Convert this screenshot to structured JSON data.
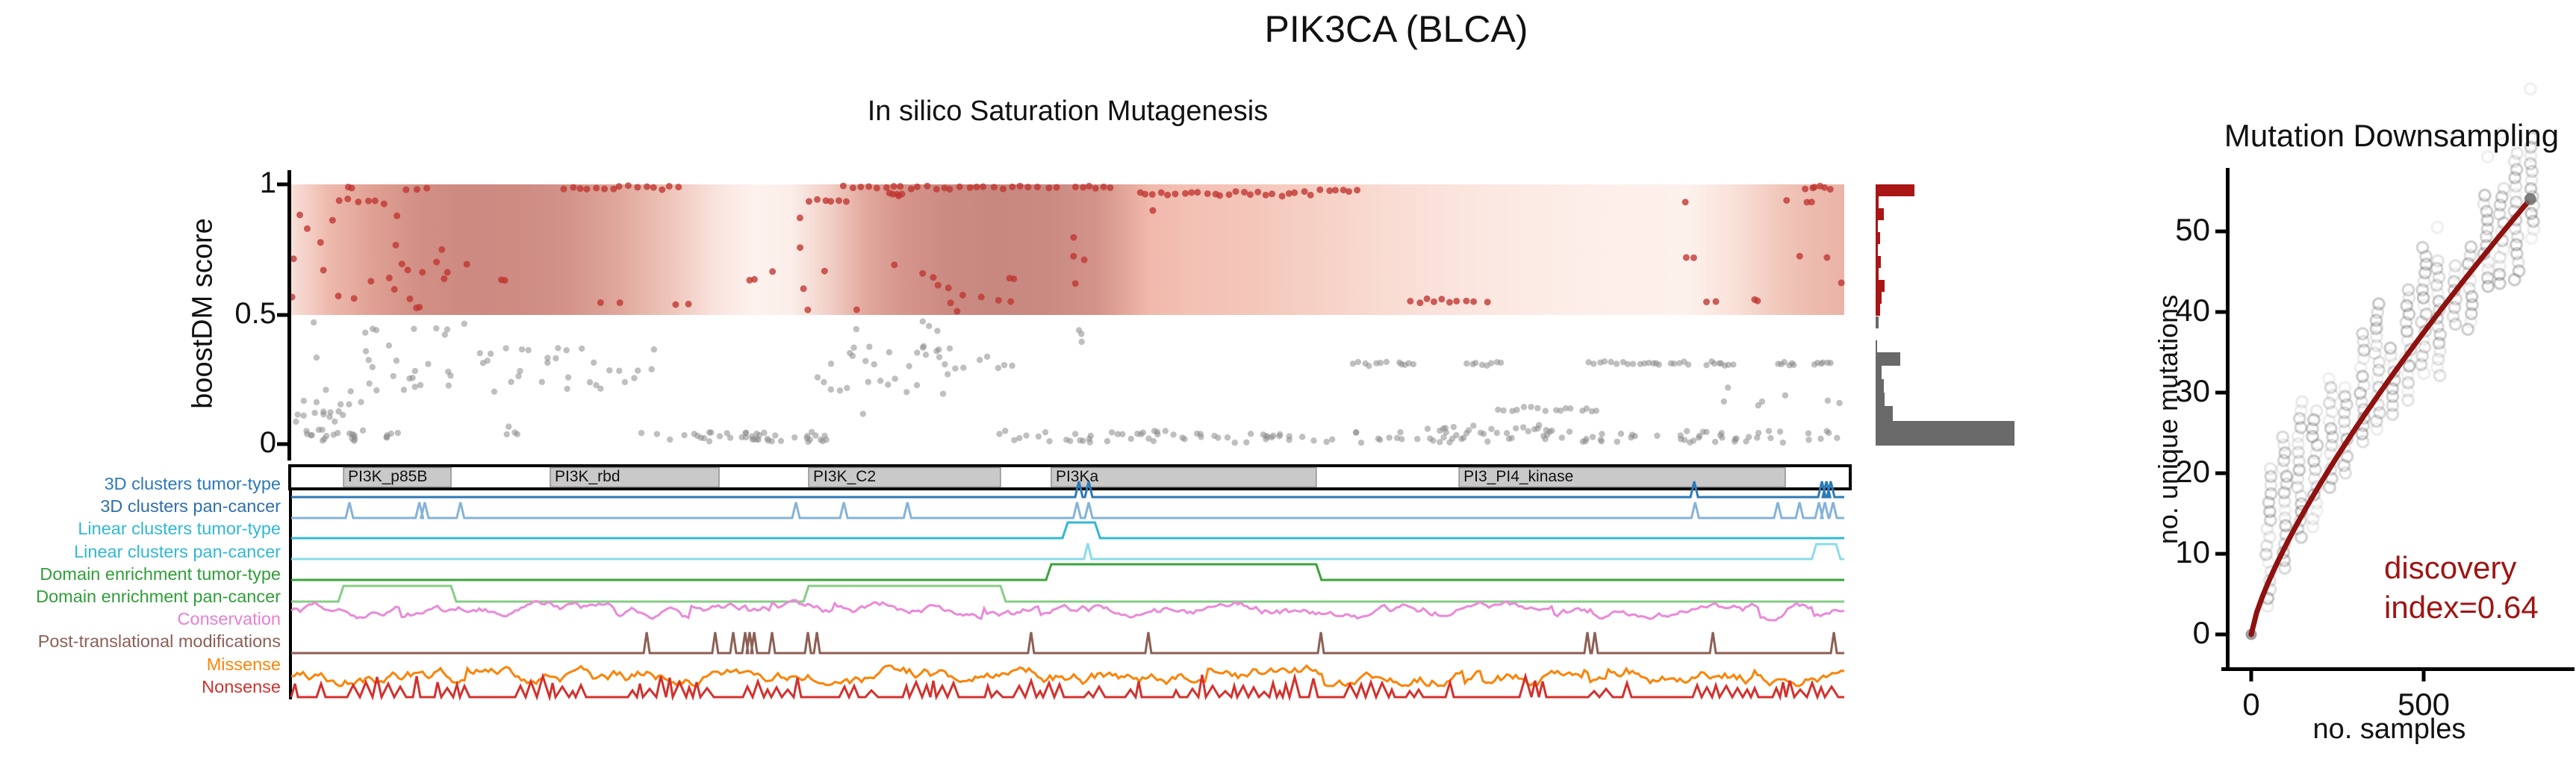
{
  "figure": {
    "title": "PIK3CA (BLCA)"
  },
  "chart_data": [
    {
      "id": "saturation_mutagenesis",
      "type": "scatter",
      "title": "In silico Saturation Mutagenesis",
      "ylabel": "boostDM score",
      "yticks": [
        "1",
        "0.5",
        "0"
      ],
      "ylim": [
        0,
        1
      ],
      "driver_threshold": 0.5,
      "driver_color": "#bf3430",
      "passenger_color": "#8a8a8a",
      "gradient_stops": [
        [
          0.0,
          "#f8e0da"
        ],
        [
          0.024,
          "#eeb9ad"
        ],
        [
          0.053,
          "#dfa093"
        ],
        [
          0.082,
          "#d28f85"
        ],
        [
          0.111,
          "#cd8a81"
        ],
        [
          0.144,
          "#cd8b82"
        ],
        [
          0.178,
          "#d3938a"
        ],
        [
          0.212,
          "#e0a89c"
        ],
        [
          0.245,
          "#efc6bb"
        ],
        [
          0.274,
          "#f9e4de"
        ],
        [
          0.298,
          "#fdf2ee"
        ],
        [
          0.322,
          "#fbeee9"
        ],
        [
          0.346,
          "#f2d0c7"
        ],
        [
          0.37,
          "#e2a89d"
        ],
        [
          0.394,
          "#d5958c"
        ],
        [
          0.423,
          "#cb8b83"
        ],
        [
          0.452,
          "#c78880"
        ],
        [
          0.486,
          "#c98a82"
        ],
        [
          0.519,
          "#d3938a"
        ],
        [
          0.538,
          "#e4a89b"
        ],
        [
          0.553,
          "#f0b9ac"
        ],
        [
          0.577,
          "#f3c0b4"
        ],
        [
          0.615,
          "#f4c5b9"
        ],
        [
          0.654,
          "#f6cfc3"
        ],
        [
          0.707,
          "#f9dcd3"
        ],
        [
          0.76,
          "#fbe6df"
        ],
        [
          0.813,
          "#fcece6"
        ],
        [
          0.865,
          "#fdf0eb"
        ],
        [
          0.899,
          "#fdf1ec"
        ],
        [
          0.928,
          "#f9e2da"
        ],
        [
          0.957,
          "#f1c8bc"
        ],
        [
          0.981,
          "#ecbaad"
        ],
        [
          1.0,
          "#eab4a7"
        ]
      ],
      "red_rows": [
        {
          "x0": 0.0355,
          "x1": 0.039,
          "y": 0.985,
          "n": 2
        },
        {
          "x0": 0.072,
          "x1": 0.086,
          "y": 0.985,
          "n": 3
        },
        {
          "x0": 0.175,
          "x1": 0.248,
          "y": 0.99,
          "n": 15
        },
        {
          "x0": 0.355,
          "x1": 0.435,
          "y": 0.99,
          "n": 16
        },
        {
          "x0": 0.44,
          "x1": 0.492,
          "y": 0.99,
          "n": 10
        },
        {
          "x0": 0.505,
          "x1": 0.527,
          "y": 0.99,
          "n": 6
        },
        {
          "x0": 0.545,
          "x1": 0.656,
          "y": 0.965,
          "n": 24
        },
        {
          "x0": 0.663,
          "x1": 0.685,
          "y": 0.98,
          "n": 6
        },
        {
          "x0": 0.9755,
          "x1": 0.99,
          "y": 0.985,
          "n": 6
        },
        {
          "x0": 0.031,
          "x1": 0.059,
          "y": 0.935,
          "n": 6
        },
        {
          "x0": 0.333,
          "x1": 0.356,
          "y": 0.935,
          "n": 6
        },
        {
          "x0": 0.385,
          "x1": 0.393,
          "y": 0.963,
          "n": 5
        },
        {
          "x0": 0.72,
          "x1": 0.756,
          "y": 0.552,
          "n": 8
        }
      ],
      "red_singles": [
        [
          0.0,
          0.565
        ],
        [
          0.001,
          0.71
        ],
        [
          0.011,
          0.83
        ],
        [
          0.019,
          0.78
        ],
        [
          0.027,
          0.865
        ],
        [
          0.005,
          0.88
        ],
        [
          0.031,
          0.57
        ],
        [
          0.041,
          0.565
        ],
        [
          0.052,
          0.625
        ],
        [
          0.063,
          0.64
        ],
        [
          0.066,
          0.6
        ],
        [
          0.021,
          0.67
        ],
        [
          0.068,
          0.77
        ],
        [
          0.072,
          0.695
        ],
        [
          0.076,
          0.56
        ],
        [
          0.08,
          0.525
        ],
        [
          0.083,
          0.53
        ],
        [
          0.068,
          0.875
        ],
        [
          0.085,
          0.66
        ],
        [
          0.094,
          0.7
        ],
        [
          0.097,
          0.75
        ],
        [
          0.101,
          0.66
        ],
        [
          0.099,
          0.635
        ],
        [
          0.0745,
          0.67
        ],
        [
          0.135,
          0.635
        ],
        [
          0.137,
          0.63
        ],
        [
          0.199,
          0.542
        ],
        [
          0.2115,
          0.542
        ],
        [
          0.248,
          0.54
        ],
        [
          0.256,
          0.54
        ],
        [
          0.295,
          0.635
        ],
        [
          0.298,
          0.63
        ],
        [
          0.332,
          0.52
        ],
        [
          0.364,
          0.52
        ],
        [
          0.31,
          0.665
        ],
        [
          0.113,
          0.69
        ],
        [
          0.327,
          0.87
        ],
        [
          0.327,
          0.76
        ],
        [
          0.343,
          0.67
        ],
        [
          0.389,
          0.69
        ],
        [
          0.407,
          0.66
        ],
        [
          0.413,
          0.64
        ],
        [
          0.416,
          0.61
        ],
        [
          0.423,
          0.6
        ],
        [
          0.444,
          0.57
        ],
        [
          0.462,
          0.64
        ],
        [
          0.465,
          0.638
        ],
        [
          0.425,
          0.545
        ],
        [
          0.4285,
          0.515
        ],
        [
          0.456,
          0.552
        ],
        [
          0.463,
          0.55
        ],
        [
          0.33,
          0.6
        ],
        [
          0.432,
          0.57
        ],
        [
          0.504,
          0.8
        ],
        [
          0.504,
          0.72
        ],
        [
          0.5055,
          0.62
        ],
        [
          0.51,
          0.71
        ],
        [
          0.555,
          0.9
        ],
        [
          0.762,
          0.55
        ],
        [
          0.77,
          0.55
        ],
        [
          0.897,
          0.935
        ],
        [
          0.898,
          0.715
        ],
        [
          0.903,
          0.72
        ],
        [
          0.963,
          0.935
        ],
        [
          0.9755,
          0.93
        ],
        [
          0.979,
          0.93
        ],
        [
          0.971,
          0.72
        ],
        [
          0.9895,
          0.72
        ],
        [
          0.998,
          0.62
        ],
        [
          0.912,
          0.55
        ],
        [
          0.917,
          0.55
        ],
        [
          0.942,
          0.555
        ],
        [
          0.9445,
          0.55
        ]
      ],
      "gray_rows": [
        {
          "x0": 0.684,
          "x1": 0.705,
          "y": 0.31,
          "n": 7
        },
        {
          "x0": 0.713,
          "x1": 0.722,
          "y": 0.31,
          "n": 5
        },
        {
          "x0": 0.757,
          "x1": 0.779,
          "y": 0.31,
          "n": 8
        },
        {
          "x0": 0.835,
          "x1": 0.868,
          "y": 0.31,
          "n": 10
        },
        {
          "x0": 0.872,
          "x1": 0.881,
          "y": 0.308,
          "n": 5
        },
        {
          "x0": 0.888,
          "x1": 0.899,
          "y": 0.308,
          "n": 5
        },
        {
          "x0": 0.912,
          "x1": 0.928,
          "y": 0.31,
          "n": 8
        },
        {
          "x0": 0.958,
          "x1": 0.968,
          "y": 0.31,
          "n": 6
        },
        {
          "x0": 0.981,
          "x1": 0.991,
          "y": 0.31,
          "n": 6
        },
        {
          "x0": 0.777,
          "x1": 0.807,
          "y": 0.135,
          "n": 8
        },
        {
          "x0": 0.814,
          "x1": 0.823,
          "y": 0.135,
          "n": 4
        },
        {
          "x0": 0.831,
          "x1": 0.84,
          "y": 0.135,
          "n": 4
        }
      ],
      "gray_clusters": [
        {
          "x0": 0.014,
          "x1": 0.235,
          "y0": 0.2,
          "y1": 0.385,
          "n": 52
        },
        {
          "x0": 0.002,
          "x1": 0.047,
          "y0": 0.08,
          "y1": 0.175,
          "n": 16
        },
        {
          "x0": 0.335,
          "x1": 0.465,
          "y0": 0.19,
          "y1": 0.38,
          "n": 38
        },
        {
          "x0": 0.01,
          "x1": 0.07,
          "y0": 0.005,
          "y1": 0.055,
          "n": 24
        },
        {
          "x0": 0.218,
          "x1": 0.345,
          "y0": 0.005,
          "y1": 0.05,
          "n": 42
        },
        {
          "x0": 0.455,
          "x1": 0.72,
          "y0": 0.005,
          "y1": 0.05,
          "n": 65
        },
        {
          "x0": 0.72,
          "x1": 0.82,
          "y0": 0.005,
          "y1": 0.07,
          "n": 40
        },
        {
          "x0": 0.82,
          "x1": 1.0,
          "y0": 0.005,
          "y1": 0.055,
          "n": 45
        },
        {
          "x0": 0.138,
          "x1": 0.152,
          "y0": 0.03,
          "y1": 0.08,
          "n": 4
        }
      ],
      "gray_singles": [
        [
          0.0145,
          0.47
        ],
        [
          0.053,
          0.445
        ],
        [
          0.055,
          0.44
        ],
        [
          0.0795,
          0.44
        ],
        [
          0.094,
          0.445
        ],
        [
          0.101,
          0.44
        ],
        [
          0.111,
          0.46
        ],
        [
          0.0475,
          0.425
        ],
        [
          0.0995,
          0.425
        ],
        [
          0.3645,
          0.445
        ],
        [
          0.407,
          0.47
        ],
        [
          0.411,
          0.455
        ],
        [
          0.416,
          0.44
        ],
        [
          0.507,
          0.44
        ],
        [
          0.509,
          0.425
        ],
        [
          0.509,
          0.39
        ],
        [
          0.368,
          0.12
        ],
        [
          0.923,
          0.16
        ],
        [
          0.9245,
          0.22
        ],
        [
          0.945,
          0.145
        ],
        [
          0.947,
          0.165
        ],
        [
          0.962,
          0.19
        ],
        [
          0.99,
          0.17
        ],
        [
          0.997,
          0.155
        ]
      ],
      "domain_segments": [
        {
          "label": "PI3K_p85B",
          "x0": 0.0337,
          "x1": 0.1029
        },
        {
          "label": "PI3K_rbd",
          "x0": 0.1668,
          "x1": 0.2755
        },
        {
          "label": "PI3K_C2",
          "x0": 0.3332,
          "x1": 0.4567
        },
        {
          "label": "PI3Ka",
          "x0": 0.4894,
          "x1": 0.66
        },
        {
          "label": "PI3_PI4_kinase",
          "x0": 0.752,
          "x1": 0.962
        }
      ],
      "tracks": [
        {
          "label": "3D clusters tumor-type",
          "label_color": "#2b7ab8",
          "line_color": "#2b7ab8",
          "kind": "spikes",
          "spikes": [
            0.5072,
            0.5135,
            0.9034,
            0.9856,
            0.9885,
            0.9913
          ]
        },
        {
          "label": "3D clusters pan-cancer",
          "label_color": "#2e6fa8",
          "line_color": "#85b3d6",
          "kind": "spikes",
          "spikes": [
            0.0375,
            0.0825,
            0.086,
            0.109,
            0.325,
            0.3558,
            0.3968,
            0.506,
            0.5135,
            0.904,
            0.9572,
            0.9712,
            0.9837,
            0.9875,
            0.9928
          ]
        },
        {
          "label": "Linear clusters tumor-type",
          "label_color": "#30b8d4",
          "line_color": "#30b8d4",
          "kind": "plateaus",
          "plateaus": [
            [
              0.5,
              0.5175
            ]
          ]
        },
        {
          "label": "Linear clusters pan-cancer",
          "label_color": "#30b8d4",
          "line_color": "#8adcea",
          "kind": "mixed",
          "spikes": [
            0.5129
          ],
          "plateaus": [
            [
              0.982,
              0.9947
            ]
          ]
        },
        {
          "label": "Domain enrichment tumor-type",
          "label_color": "#2f9e38",
          "line_color": "#3aa33a",
          "kind": "plateaus",
          "plateaus": [
            [
              0.4894,
              0.66
            ]
          ]
        },
        {
          "label": "Domain enrichment pan-cancer",
          "label_color": "#2f9e38",
          "line_color": "#86cd86",
          "kind": "plateaus",
          "plateaus": [
            [
              0.0337,
              0.1029
            ],
            [
              0.3332,
              0.4567
            ]
          ]
        },
        {
          "label": "Conservation",
          "label_color": "#e87fd2",
          "line_color": "#ea8ad8",
          "kind": "noise"
        },
        {
          "label": "Post-translational modifications",
          "label_color": "#8d5f55",
          "line_color": "#8d5f55",
          "kind": "spikes",
          "spikes": [
            0.2289,
            0.273,
            0.2846,
            0.2923,
            0.2952,
            0.2981,
            0.3096,
            0.3327,
            0.3385,
            0.4764,
            0.5519,
            0.663,
            0.8346,
            0.8394,
            0.9154,
            0.9933
          ]
        },
        {
          "label": "Missense",
          "label_color": "#fb8306",
          "line_color": "#fb8306",
          "kind": "noise"
        },
        {
          "label": "Nonsense",
          "label_color": "#d2312d",
          "line_color": "#d2312d",
          "kind": "spiky"
        }
      ]
    },
    {
      "id": "score_histogram",
      "type": "bar",
      "orientation": "horizontal",
      "red_color": "#a91616",
      "gray_color": "#696969",
      "red_bins_top_to_bottom": [
        52,
        4,
        11,
        3,
        6,
        3,
        7,
        4,
        12,
        8,
        6
      ],
      "red_bin_score_range": [
        1.0,
        0.5
      ],
      "gray_bins_top_to_bottom": [
        4,
        2,
        33,
        8,
        11,
        12,
        23,
        186
      ],
      "gray_bin_score_range": [
        0.47,
        0.0
      ]
    },
    {
      "id": "mutation_downsampling",
      "type": "scatter",
      "title": "Mutation Downsampling",
      "xlabel": "no. samples",
      "ylabel": "no. unique mutations",
      "xticks": [
        0,
        500
      ],
      "yticks": [
        0,
        10,
        20,
        30,
        40,
        50
      ],
      "xlim": [
        0,
        930
      ],
      "ylim": [
        0,
        57
      ],
      "annotation_line1": "discovery",
      "annotation_line2": "index=0.64",
      "annotation_color": "#9e1512",
      "curve_color": "#8e1210",
      "dot_color": "#3f3f3f",
      "max_samples": 809,
      "max_unique_mutations": 54,
      "curve_exponent": 0.76,
      "column_start": 50,
      "column_step": 45,
      "n_columns": 18
    }
  ]
}
